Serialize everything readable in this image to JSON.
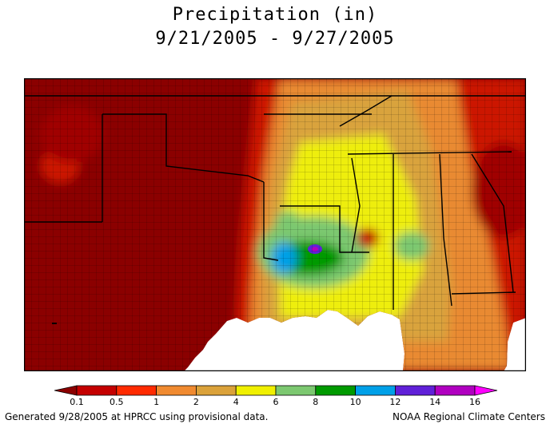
{
  "title": {
    "line1": "Precipitation (in)",
    "line2": "9/21/2005 - 9/27/2005"
  },
  "legend": {
    "ticks": [
      "0.1",
      "0.5",
      "1",
      "2",
      "4",
      "6",
      "8",
      "10",
      "12",
      "14",
      "16"
    ],
    "colors": [
      "#8b0000",
      "#c40000",
      "#ff2a00",
      "#f08a30",
      "#dba23a",
      "#f0f000",
      "#7cc870",
      "#009a00",
      "#00a0e8",
      "#6020d8",
      "#b000c0",
      "#ff00ff"
    ]
  },
  "map": {
    "region": "South-central and southeastern United States",
    "shows_county_boundaries": true,
    "shows_state_boundaries": true
  },
  "footer": {
    "left": "Generated 9/28/2005 at HPRCC using provisional data.",
    "right": "NOAA Regional Climate Centers"
  }
}
